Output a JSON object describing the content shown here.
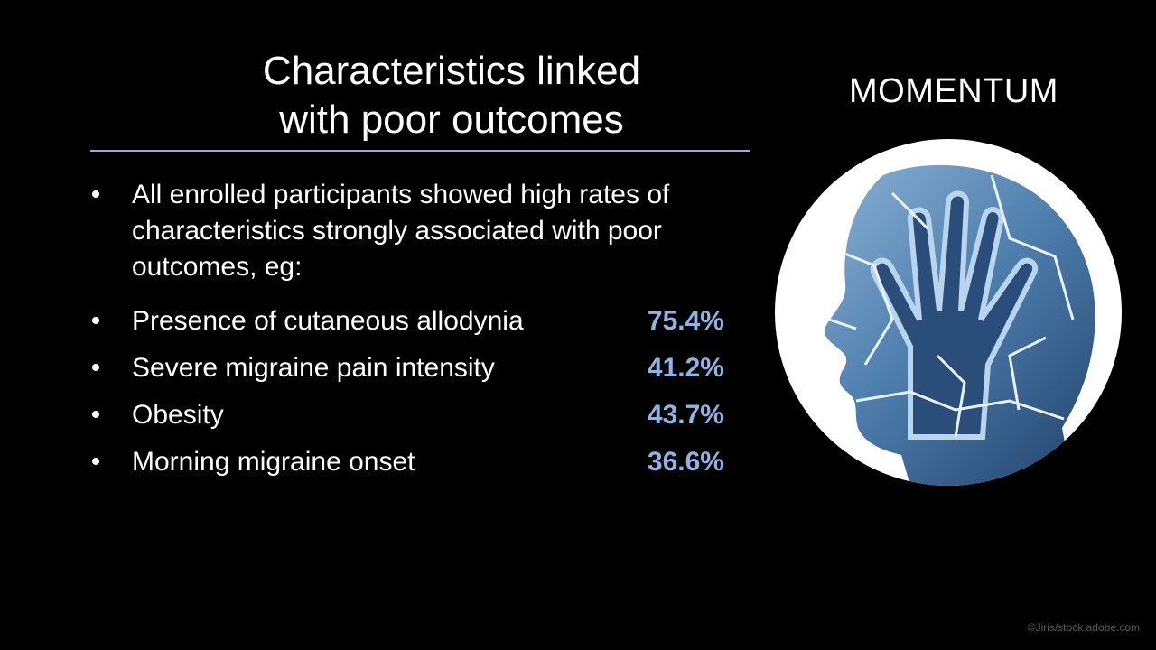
{
  "slide": {
    "title_lines": [
      "Characteristics linked",
      "with poor outcomes"
    ],
    "brand": "MOMENTUM",
    "intro": "All enrolled participants showed high rates of characteristics strongly associated with poor outcomes, eg:",
    "items": [
      {
        "label": "Presence of cutaneous allodynia",
        "value": "75.4%"
      },
      {
        "label": "Severe migraine pain intensity",
        "value": "41.2%"
      },
      {
        "label": "Obesity",
        "value": "43.7%"
      },
      {
        "label": "Morning migraine onset",
        "value": "36.6%"
      }
    ],
    "bullet_glyph": "•",
    "credit": "©Jiris/stock.adobe.com",
    "accent_color": "#8fb4e3",
    "rule_color": "#8fb0df",
    "illustration_icon": "head-hand-cracked-icon"
  }
}
